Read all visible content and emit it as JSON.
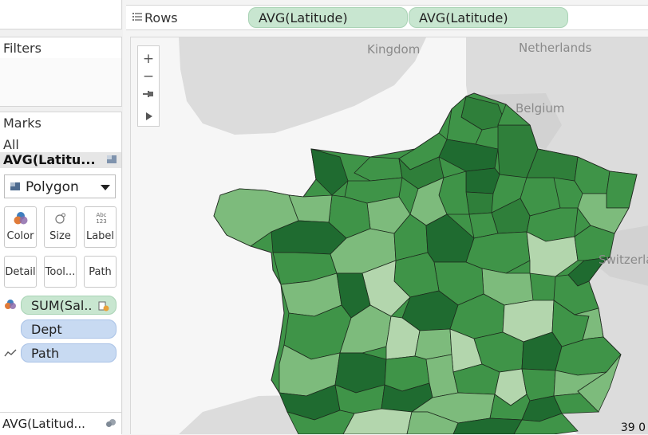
{
  "shelf": {
    "rows_label": "Rows",
    "pills": [
      "AVG(Latitude)",
      "AVG(Latitude)"
    ]
  },
  "filters": {
    "title": "Filters"
  },
  "marks": {
    "title": "Marks",
    "all_label": "All",
    "layer_label": "AVG(Latitu...",
    "mark_type": "Polygon",
    "buttons": [
      "Color",
      "Size",
      "Label",
      "Detail",
      "Tool...",
      "Path"
    ],
    "label_icon_text": "Abc\n123",
    "fields": [
      {
        "label": "SUM(Sal..",
        "role": "color"
      },
      {
        "label": "Dept",
        "role": "detail"
      },
      {
        "label": "Path",
        "role": "path"
      }
    ],
    "bottom_layer": "AVG(Latitud..."
  },
  "map": {
    "zoom_in": "+",
    "zoom_out": "−",
    "places": [
      "Kingdom",
      "Netherlands",
      "Belgium",
      "Switzerla"
    ],
    "coordinate_readout": "39 0",
    "colors": {
      "dark": "#1f6b30",
      "mid": "#3f9448",
      "light": "#7dbb7c",
      "pale": "#b3d6ad",
      "land": "#dcdcdc",
      "sea": "#f6f6f6"
    }
  }
}
